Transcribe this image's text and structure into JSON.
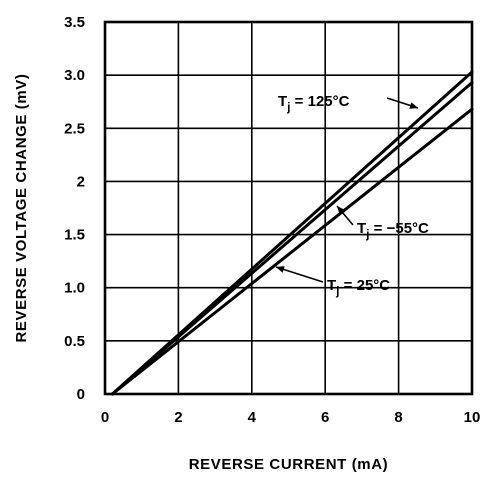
{
  "chart_data": {
    "type": "line",
    "xlabel": "REVERSE CURRENT (mA)",
    "ylabel": "REVERSE VOLTAGE CHANGE (mV)",
    "xlim": [
      0,
      10
    ],
    "ylim": [
      0,
      3.5
    ],
    "x_ticks": [
      "0",
      "2",
      "4",
      "6",
      "8",
      "10"
    ],
    "y_ticks": [
      "0",
      "0.5",
      "1.0",
      "1.5",
      "2",
      "2.5",
      "3.0",
      "3.5"
    ],
    "grid": true,
    "series": [
      {
        "name": "T_j = 125°C",
        "x": [
          0.2,
          10
        ],
        "y": [
          0,
          3.03
        ]
      },
      {
        "name": "T_j = −55°C",
        "x": [
          0.2,
          10
        ],
        "y": [
          0,
          2.93
        ]
      },
      {
        "name": "T_j = 25°C",
        "x": [
          0.2,
          10
        ],
        "y": [
          0,
          2.68
        ]
      }
    ],
    "annotations": [
      {
        "label": "T",
        "sub": "j",
        "rest": " = 125°C",
        "series": 0
      },
      {
        "label": "T",
        "sub": "j",
        "rest": " = −55°C",
        "series": 1
      },
      {
        "label": "T",
        "sub": "j",
        "rest": " = 25°C",
        "series": 2
      }
    ]
  }
}
